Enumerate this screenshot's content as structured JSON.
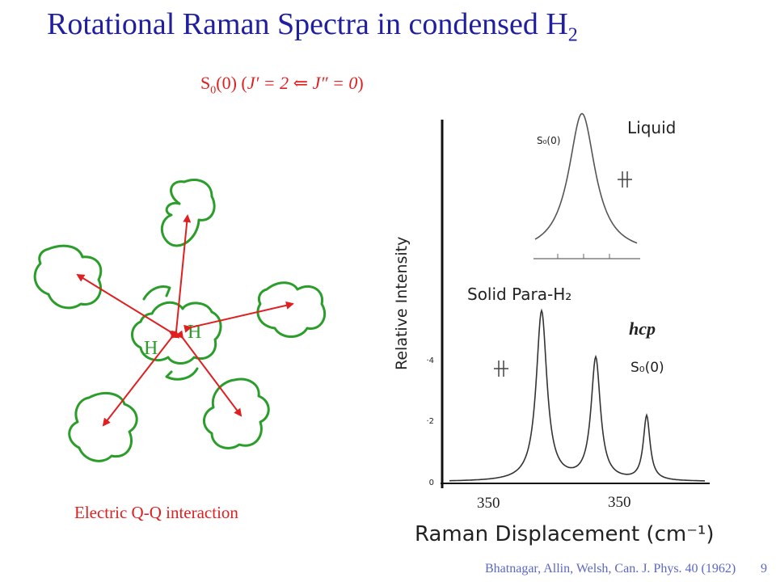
{
  "slide": {
    "title_main": "Rotational Raman Spectra in condensed H",
    "title_sub": "2",
    "transition_prefix": "S",
    "transition_sub": "0",
    "transition_arg": "(0) (",
    "transition_upper": "J′ = 2",
    "transition_arrow": "⇐",
    "transition_lower": "J″ = 0",
    "transition_close": ")",
    "caption": "Electric Q-Q interaction",
    "citation": "Bhatnagar, Allin, Welsh, Can. J. Phys. 40 (1962)",
    "slide_number": "9"
  },
  "diagram": {
    "atom_label_left": "H",
    "atom_label_right": "H",
    "colors": {
      "molecule": "#2a9d2a",
      "arrow": "#e02020"
    }
  },
  "chart_data": [
    {
      "type": "line",
      "title": "Liquid",
      "inset_label": "S₀(0)",
      "series": [
        {
          "name": "Liquid",
          "shape": "single broad peak"
        }
      ]
    },
    {
      "type": "line",
      "title": "Solid Para-H₂",
      "annotation": "hcp",
      "peak_label": "S₀(0)",
      "xlabel": "Raman Displacement (cm⁻¹)",
      "ylabel": "Relative Intensity",
      "ytick_labels": [
        "0",
        "·2",
        "·4"
      ],
      "xtick_labels": [
        "350",
        "350"
      ],
      "ylim": [
        0,
        0.5
      ],
      "series": [
        {
          "name": "Solid Para-H₂",
          "peaks": [
            1.0,
            0.72,
            0.38
          ]
        }
      ]
    }
  ]
}
